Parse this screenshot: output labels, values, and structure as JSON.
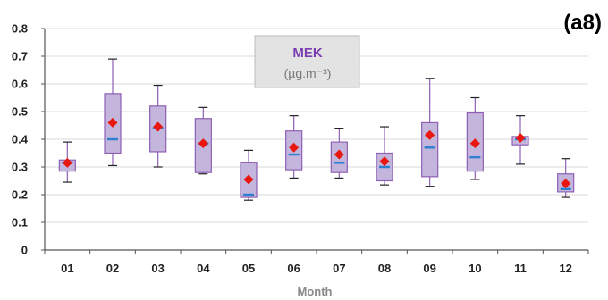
{
  "panel_label": "(a8)",
  "chart_data": {
    "type": "boxplot",
    "title": "MEK",
    "unit": "(µg.m⁻³)",
    "xlabel": "Month",
    "ylabel": "",
    "ylim": [
      0,
      0.8
    ],
    "yticks": [
      "0",
      "0.1",
      "0.2",
      "0.3",
      "0.4",
      "0.5",
      "0.6",
      "0.7",
      "0.8"
    ],
    "grid": true,
    "categories": [
      "01",
      "02",
      "03",
      "04",
      "05",
      "06",
      "07",
      "08",
      "09",
      "10",
      "11",
      "12"
    ],
    "boxes": [
      {
        "min": 0.245,
        "q1": 0.285,
        "median": 0.315,
        "q3": 0.325,
        "max": 0.39,
        "mean": 0.315
      },
      {
        "min": 0.305,
        "q1": 0.35,
        "median": 0.4,
        "q3": 0.565,
        "max": 0.69,
        "mean": 0.46
      },
      {
        "min": 0.3,
        "q1": 0.355,
        "median": 0.44,
        "q3": 0.52,
        "max": 0.595,
        "mean": 0.445
      },
      {
        "min": 0.275,
        "q1": 0.28,
        "median": 0.385,
        "q3": 0.475,
        "max": 0.515,
        "mean": 0.385
      },
      {
        "min": 0.18,
        "q1": 0.19,
        "median": 0.2,
        "q3": 0.315,
        "max": 0.36,
        "mean": 0.255
      },
      {
        "min": 0.26,
        "q1": 0.29,
        "median": 0.345,
        "q3": 0.43,
        "max": 0.485,
        "mean": 0.37
      },
      {
        "min": 0.26,
        "q1": 0.28,
        "median": 0.315,
        "q3": 0.39,
        "max": 0.44,
        "mean": 0.345
      },
      {
        "min": 0.235,
        "q1": 0.25,
        "median": 0.3,
        "q3": 0.35,
        "max": 0.445,
        "mean": 0.32
      },
      {
        "min": 0.23,
        "q1": 0.265,
        "median": 0.37,
        "q3": 0.46,
        "max": 0.62,
        "mean": 0.415
      },
      {
        "min": 0.255,
        "q1": 0.285,
        "median": 0.335,
        "q3": 0.495,
        "max": 0.55,
        "mean": 0.385
      },
      {
        "min": 0.31,
        "q1": 0.38,
        "median": 0.4,
        "q3": 0.41,
        "max": 0.485,
        "mean": 0.405
      },
      {
        "min": 0.19,
        "q1": 0.21,
        "median": 0.22,
        "q3": 0.275,
        "max": 0.33,
        "mean": 0.24
      }
    ],
    "colors": {
      "box_fill": "#c4b5dc",
      "box_edge": "#8e5fb4",
      "whisker": "#8e5fb4",
      "median": "#2e7fd0",
      "mean": "#e8170f",
      "grid": "#d9d9d9",
      "title": "#7a3fb0",
      "legend_box_fill": "#e3e3e3",
      "legend_box_edge": "#c4c4c4"
    }
  }
}
